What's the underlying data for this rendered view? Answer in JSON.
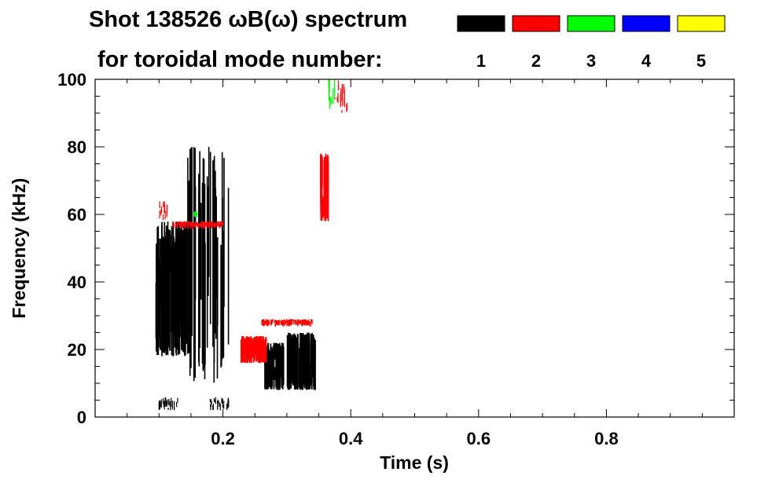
{
  "chart_data": {
    "type": "heatmap",
    "title": "Shot 138526 ωB(ω) spectrum",
    "subtitle": "for toroidal mode number:",
    "xlabel": "Time (s)",
    "ylabel": "Frequency (kHz)",
    "xlim": [
      0.0,
      1.0
    ],
    "ylim": [
      0,
      100
    ],
    "x_ticks": [
      0.2,
      0.4,
      0.6,
      0.8
    ],
    "x_tick_labels": [
      "0.2",
      "0.4",
      "0.6",
      "0.8"
    ],
    "y_ticks": [
      0,
      20,
      40,
      60,
      80,
      100
    ],
    "y_tick_labels": [
      "0",
      "20",
      "40",
      "60",
      "80",
      "100"
    ],
    "legend": {
      "placement": "top-right",
      "entries": [
        {
          "mode": "1",
          "color": "#000000"
        },
        {
          "mode": "2",
          "color": "#ff0000"
        },
        {
          "mode": "3",
          "color": "#00ff00"
        },
        {
          "mode": "4",
          "color": "#0000ff"
        },
        {
          "mode": "5",
          "color": "#ffff00"
        }
      ]
    },
    "series": [
      {
        "name": "n=1",
        "color": "#000000",
        "regions": [
          {
            "t": [
              0.095,
              0.145
            ],
            "f": [
              18,
              58
            ],
            "density": "dense"
          },
          {
            "t": [
              0.145,
              0.21
            ],
            "f": [
              10,
              80
            ],
            "density": "striped"
          },
          {
            "t": [
              0.265,
              0.295
            ],
            "f": [
              8,
              22
            ],
            "density": "dense"
          },
          {
            "t": [
              0.3,
              0.345
            ],
            "f": [
              8,
              25
            ],
            "density": "dense"
          },
          {
            "t": [
              0.1,
              0.13
            ],
            "f": [
              2,
              6
            ],
            "density": "sparse"
          },
          {
            "t": [
              0.18,
              0.21
            ],
            "f": [
              2,
              6
            ],
            "density": "sparse"
          }
        ]
      },
      {
        "name": "n=2",
        "color": "#ff0000",
        "regions": [
          {
            "t": [
              0.228,
              0.268
            ],
            "f": [
              16,
              24
            ],
            "density": "dense"
          },
          {
            "t": [
              0.26,
              0.34
            ],
            "f": [
              27,
              29
            ],
            "density": "band"
          },
          {
            "t": [
              0.352,
              0.365
            ],
            "f": [
              58,
              78
            ],
            "density": "dense"
          },
          {
            "t": [
              0.375,
              0.395
            ],
            "f": [
              90,
              100
            ],
            "density": "sparse"
          },
          {
            "t": [
              0.1,
              0.115
            ],
            "f": [
              58,
              64
            ],
            "density": "sparse"
          },
          {
            "t": [
              0.12,
              0.2
            ],
            "f": [
              56,
              58
            ],
            "density": "band"
          }
        ]
      },
      {
        "name": "n=3",
        "color": "#00ff00",
        "regions": [
          {
            "t": [
              0.365,
              0.375
            ],
            "f": [
              90,
              100
            ],
            "density": "sparse"
          },
          {
            "t": [
              0.155,
              0.16
            ],
            "f": [
              59,
              61
            ],
            "density": "sparse"
          }
        ]
      },
      {
        "name": "n=4",
        "color": "#0000ff",
        "regions": []
      },
      {
        "name": "n=5",
        "color": "#ffff00",
        "regions": []
      }
    ]
  }
}
